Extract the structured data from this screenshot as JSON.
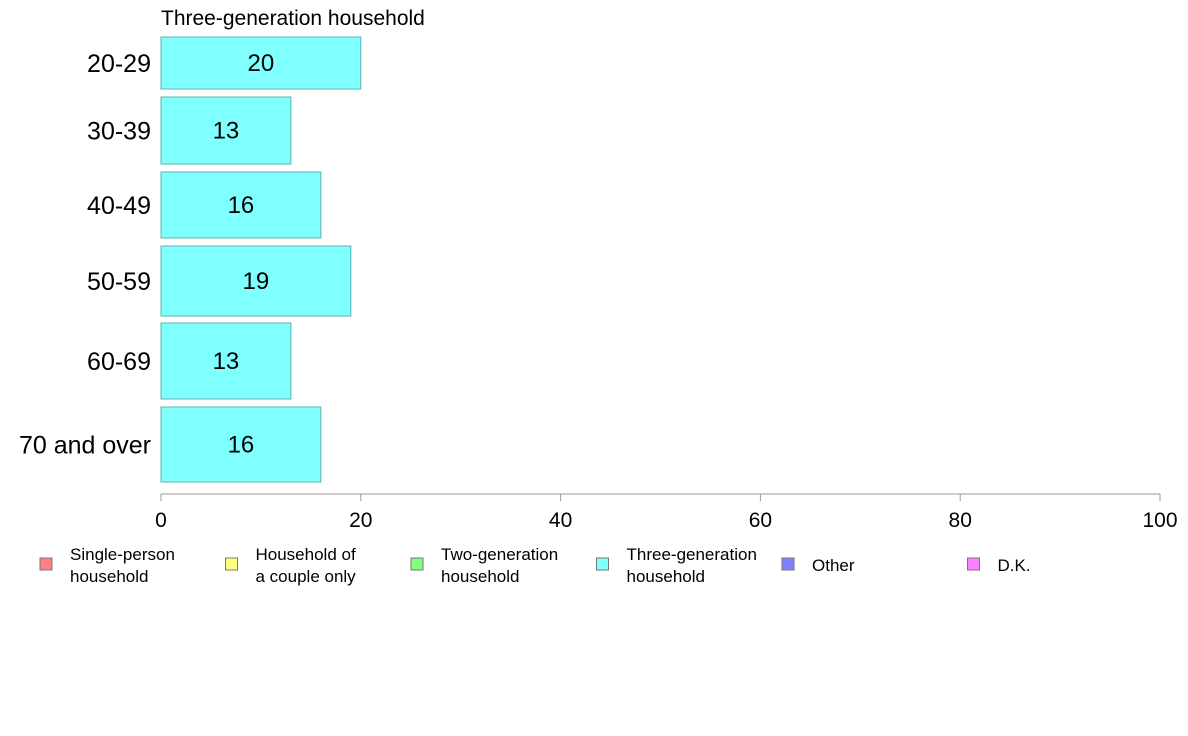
{
  "chart_data": {
    "type": "bar",
    "orientation": "horizontal",
    "title": "Three-generation household",
    "categories": [
      "20-29",
      "30-39",
      "40-49",
      "50-59",
      "60-69",
      "70 and over"
    ],
    "series": [
      {
        "name": "Three-generation household",
        "values": [
          20,
          13,
          16,
          19,
          13,
          16
        ],
        "color": "#80ffff"
      }
    ],
    "data_labels": [
      "20",
      "13",
      "16",
      "19",
      "13",
      "16"
    ],
    "xlim": [
      0,
      100
    ],
    "x_ticks": [
      0,
      20,
      40,
      60,
      80,
      100
    ],
    "x_tick_labels": [
      "0",
      "20",
      "40",
      "60",
      "80",
      "100"
    ],
    "grid": false,
    "legend_position": "bottom",
    "legend": [
      {
        "lines": [
          "Single-person",
          "household"
        ],
        "color": "#ff8080"
      },
      {
        "lines": [
          "Household of",
          "a couple only"
        ],
        "color": "#ffff80"
      },
      {
        "lines": [
          "Two-generation",
          "household"
        ],
        "color": "#80ff80"
      },
      {
        "lines": [
          "Three-generation",
          "household"
        ],
        "color": "#80ffff"
      },
      {
        "lines": [
          "Other"
        ],
        "color": "#8080ff"
      },
      {
        "lines": [
          "D.K."
        ],
        "color": "#ff80ff"
      }
    ],
    "bar_edge_color": "#5fb0b0",
    "axis_color": "#999999"
  }
}
